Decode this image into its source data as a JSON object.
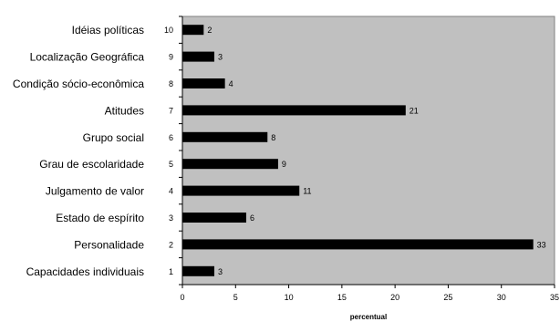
{
  "chart_data": {
    "type": "bar",
    "orientation": "horizontal",
    "categories": [
      "Idéias políticas",
      "Localização Geográfica",
      "Condição sócio-econômica",
      "Atitudes",
      "Grupo social",
      "Grau de escolaridade",
      "Julgamento de valor",
      "Estado de espírito",
      "Personalidade",
      "Capacidades individuais"
    ],
    "category_numbers": [
      "10",
      "9",
      "8",
      "7",
      "6",
      "5",
      "4",
      "3",
      "2",
      "1"
    ],
    "values": [
      2,
      3,
      4,
      21,
      8,
      9,
      11,
      6,
      33,
      3
    ],
    "xlabel": "percentual",
    "ylabel": "",
    "xlim": [
      0,
      35
    ],
    "xticks": [
      0,
      5,
      10,
      15,
      20,
      25,
      30,
      35
    ],
    "grid": false,
    "legend": "none",
    "colors": {
      "plot_background": "#c0c0c0",
      "bar": "#000000"
    }
  }
}
